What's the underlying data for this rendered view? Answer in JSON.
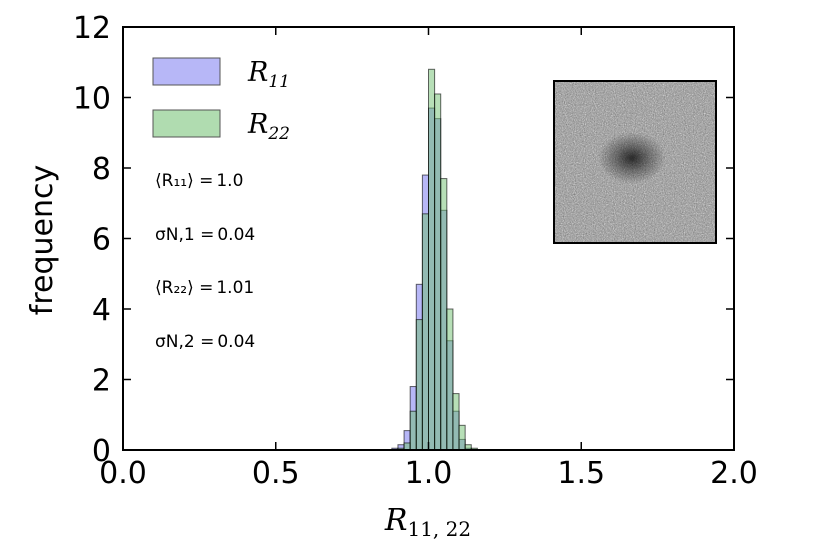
{
  "chart_data": {
    "type": "histogram",
    "title": "",
    "xlabel": "R",
    "xlabel_sub": "11, 22",
    "ylabel": "frequency",
    "xlim": [
      0.0,
      2.0
    ],
    "ylim": [
      0,
      12
    ],
    "xticks": [
      "0.0",
      "0.5",
      "1.0",
      "1.5",
      "2.0"
    ],
    "yticks": [
      "0",
      "2",
      "4",
      "6",
      "8",
      "10",
      "12"
    ],
    "xtick_values": [
      0.0,
      0.5,
      1.0,
      1.5,
      2.0
    ],
    "ytick_values": [
      0,
      2,
      4,
      6,
      8,
      10,
      12
    ],
    "bin_width": 0.02,
    "series": [
      {
        "name": "R11",
        "sub": "11",
        "color": "#7b7bf0",
        "bins": [
          {
            "x": 0.88,
            "h": 0.05
          },
          {
            "x": 0.9,
            "h": 0.15
          },
          {
            "x": 0.92,
            "h": 0.55
          },
          {
            "x": 0.94,
            "h": 1.8
          },
          {
            "x": 0.96,
            "h": 4.7
          },
          {
            "x": 0.98,
            "h": 7.8
          },
          {
            "x": 1.0,
            "h": 9.7
          },
          {
            "x": 1.02,
            "h": 9.4
          },
          {
            "x": 1.04,
            "h": 6.8
          },
          {
            "x": 1.06,
            "h": 3.1
          },
          {
            "x": 1.08,
            "h": 1.1
          },
          {
            "x": 1.1,
            "h": 0.3
          },
          {
            "x": 1.12,
            "h": 0.05
          }
        ]
      },
      {
        "name": "R22",
        "sub": "22",
        "color": "#6fbf6f",
        "bins": [
          {
            "x": 0.9,
            "h": 0.05
          },
          {
            "x": 0.92,
            "h": 0.2
          },
          {
            "x": 0.94,
            "h": 1.1
          },
          {
            "x": 0.96,
            "h": 3.7
          },
          {
            "x": 0.98,
            "h": 6.7
          },
          {
            "x": 1.0,
            "h": 10.8
          },
          {
            "x": 1.02,
            "h": 10.1
          },
          {
            "x": 1.04,
            "h": 7.7
          },
          {
            "x": 1.06,
            "h": 4.0
          },
          {
            "x": 1.08,
            "h": 1.6
          },
          {
            "x": 1.1,
            "h": 0.7
          },
          {
            "x": 1.12,
            "h": 0.15
          },
          {
            "x": 1.14,
            "h": 0.05
          }
        ]
      }
    ],
    "legend": {
      "placement": "top-left"
    },
    "annotations": [
      {
        "lhs": "⟨R₁₁⟩ =",
        "value": "1.0"
      },
      {
        "lhs": "σN,1 =",
        "value": "0.04"
      },
      {
        "lhs": "⟨R₂₂⟩ =",
        "value": "1.01"
      },
      {
        "lhs": "σN,2 =",
        "value": "0.04"
      }
    ],
    "inset": {
      "description": "noisy galaxy image",
      "placement": "top-right"
    }
  },
  "colors": {
    "r11": "#7b7bf0",
    "r22": "#6fbf6f",
    "overlap": "#3f8a9a"
  }
}
